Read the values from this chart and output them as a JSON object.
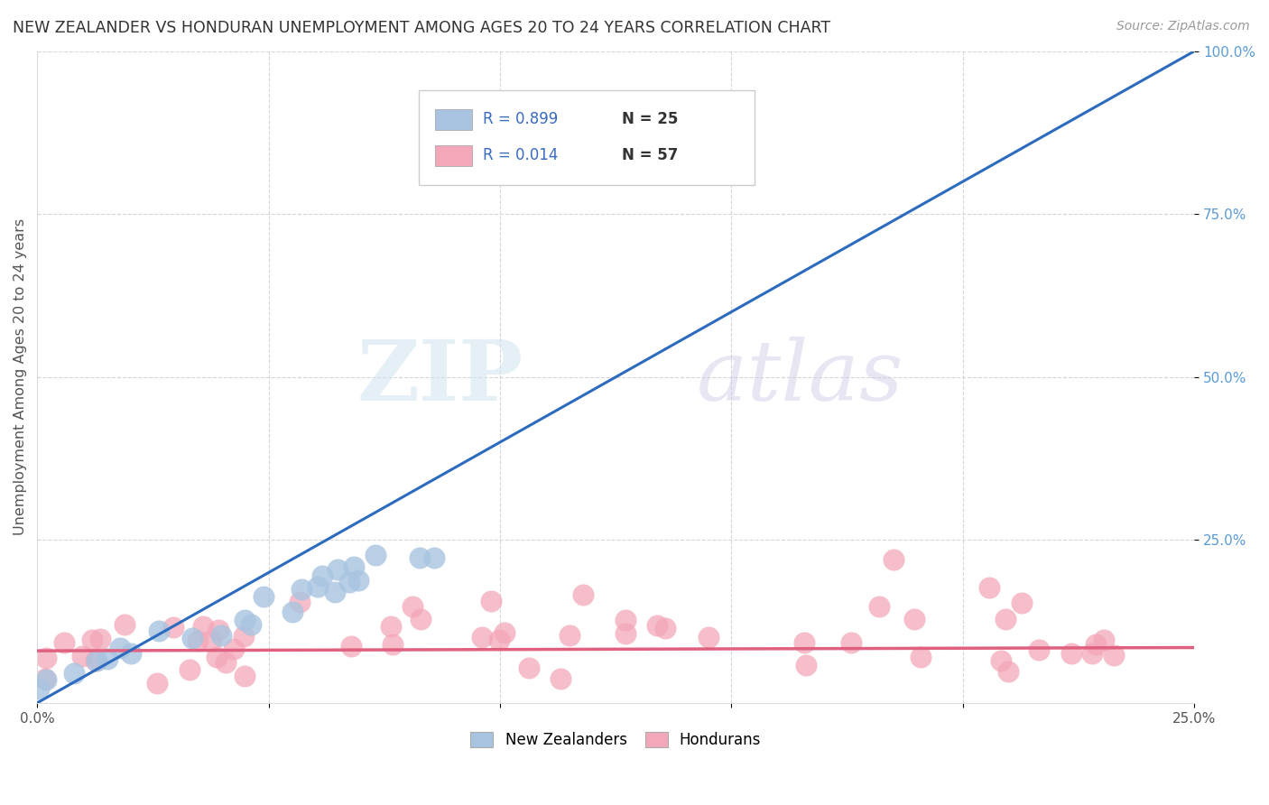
{
  "title": "NEW ZEALANDER VS HONDURAN UNEMPLOYMENT AMONG AGES 20 TO 24 YEARS CORRELATION CHART",
  "source": "Source: ZipAtlas.com",
  "ylabel": "Unemployment Among Ages 20 to 24 years",
  "xlim": [
    0.0,
    0.25
  ],
  "ylim": [
    0.0,
    1.0
  ],
  "xticks": [
    0.0,
    0.05,
    0.1,
    0.15,
    0.2,
    0.25
  ],
  "ytick_positions": [
    0.25,
    0.5,
    0.75,
    1.0
  ],
  "ytick_labels": [
    "25.0%",
    "50.0%",
    "75.0%",
    "100.0%"
  ],
  "xtick_labels": [
    "0.0%",
    "",
    "",
    "",
    "",
    "25.0%"
  ],
  "nz_R": "0.899",
  "nz_N": "25",
  "hon_R": "0.014",
  "hon_N": "57",
  "nz_color": "#a8c4e0",
  "hon_color": "#f4a7b9",
  "nz_line_color": "#2d6bbf",
  "hon_line_color": "#e06080",
  "legend_nz_label": "New Zealanders",
  "legend_hon_label": "Hondurans",
  "watermark_zip": "ZIP",
  "watermark_atlas": "atlas",
  "background_color": "#ffffff",
  "grid_color": "#cccccc",
  "nz_seed": 10,
  "hon_seed": 20
}
